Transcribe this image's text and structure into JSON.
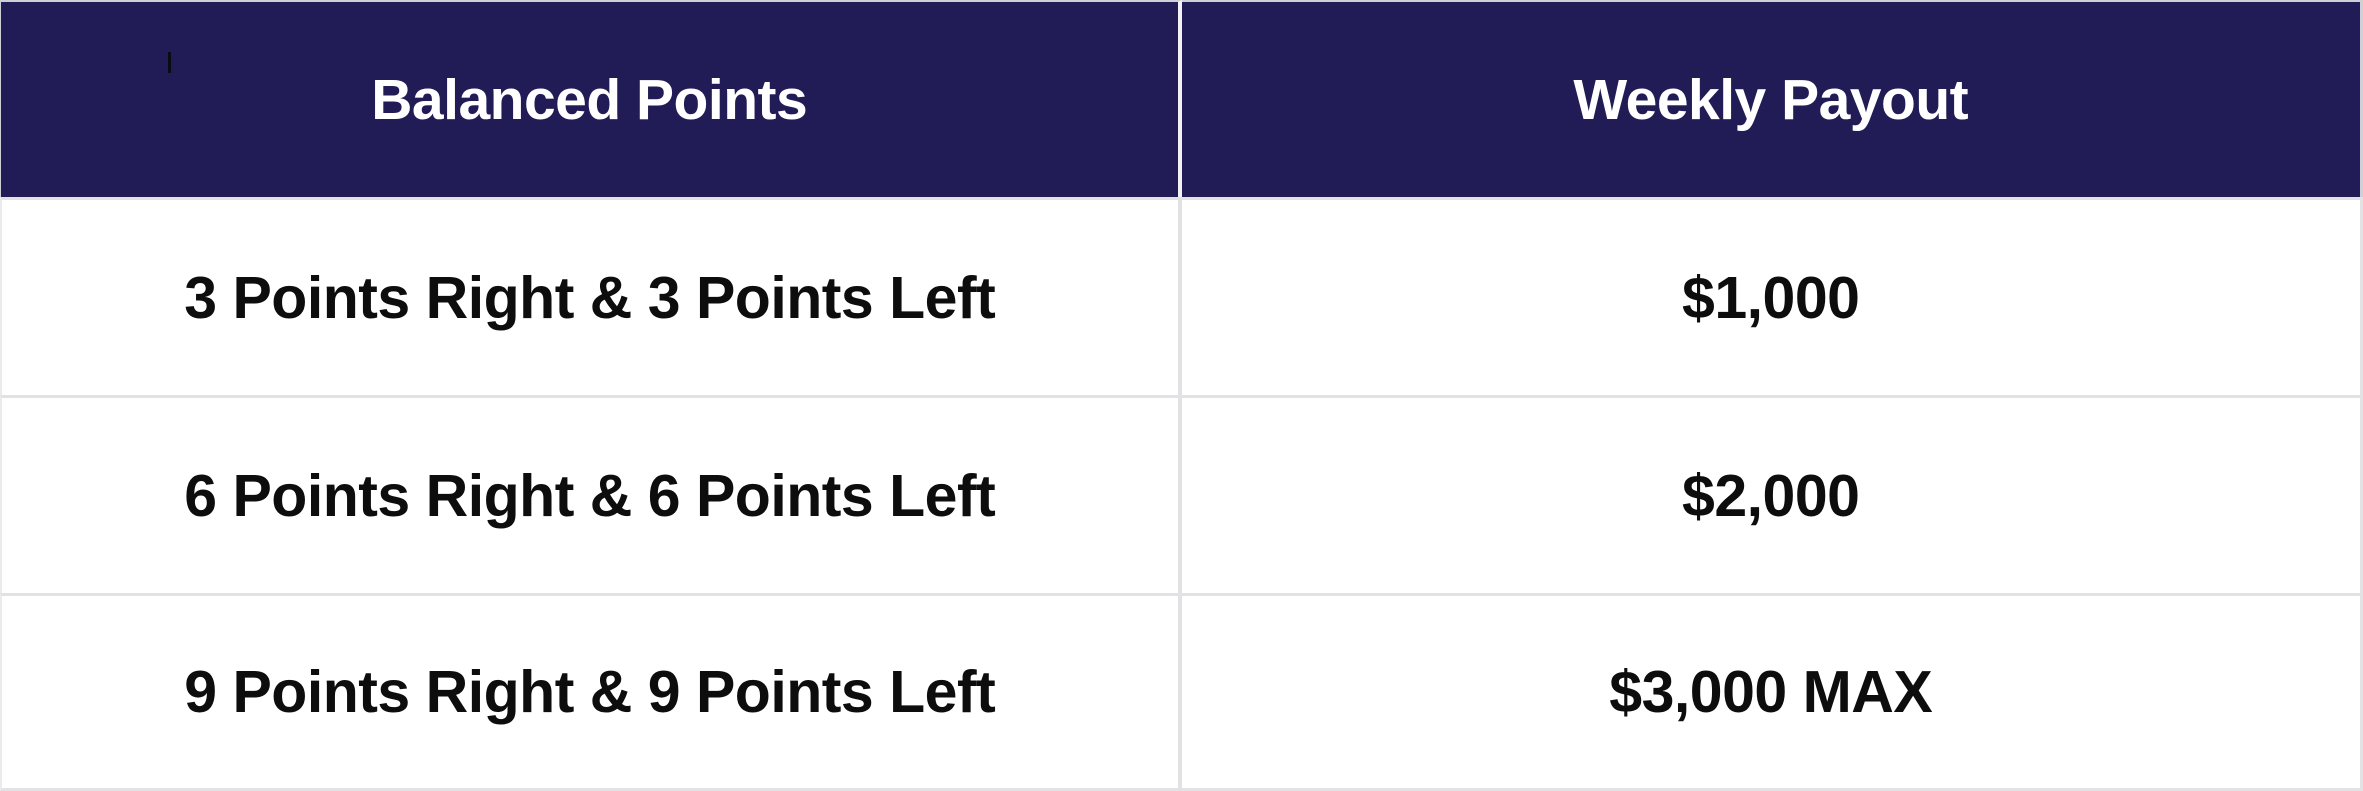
{
  "table": {
    "columns": [
      {
        "label": "Balanced Points"
      },
      {
        "label": "Weekly Payout"
      }
    ],
    "rows": [
      {
        "points": "3 Points Right & 3 Points Left",
        "payout": "$1,000"
      },
      {
        "points": "6 Points Right & 6 Points Left",
        "payout": "$2,000"
      },
      {
        "points": "9 Points Right & 9 Points Left",
        "payout": "$3,000 MAX"
      }
    ]
  },
  "colors": {
    "header_bg": "#211c56",
    "header_text": "#ffffff",
    "body_text": "#0d0d0d",
    "border": "#e2e2e5"
  }
}
